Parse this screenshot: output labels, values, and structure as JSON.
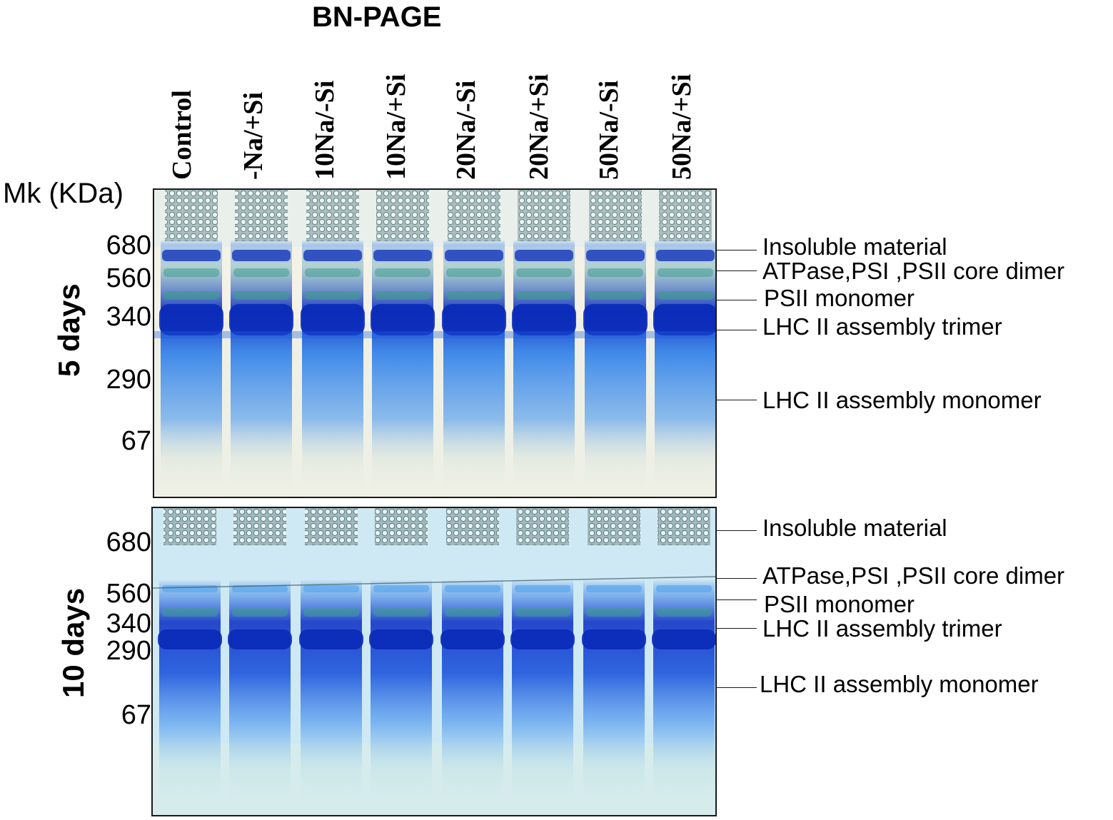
{
  "title": "BN-PAGE",
  "lanes": [
    "Control",
    "-Na/+Si",
    "10Na/-Si",
    "10Na/+Si",
    "20Na/-Si",
    "20Na/+Si",
    "50Na/-Si",
    "50Na/+Si"
  ],
  "marker_title": "Mk (KDa)",
  "panels": [
    {
      "label": "5 days",
      "markers": [
        "680",
        "560",
        "340",
        "290",
        "67"
      ],
      "bands": [
        "Insoluble material",
        "ATPase,PSI ,PSII core dimer",
        "PSII monomer",
        "LHC II assembly trimer",
        "LHC II assembly monomer"
      ]
    },
    {
      "label": "10 days",
      "markers": [
        "680",
        "560",
        "340",
        "290",
        "67"
      ],
      "bands": [
        "Insoluble material",
        "ATPase,PSI ,PSII core dimer",
        "PSII monomer",
        "LHC II assembly trimer",
        "LHC II assembly monomer"
      ]
    }
  ],
  "colors": {
    "gel_top_bg": "#f4f1e6",
    "gel_bottom_bg": "#cfe9f4",
    "coomassie_dark": "#0a2ab8",
    "coomassie_mid": "#1e5fe0",
    "coomassie_light": "#5aa6ee",
    "green_band": "#3f9f8c"
  }
}
